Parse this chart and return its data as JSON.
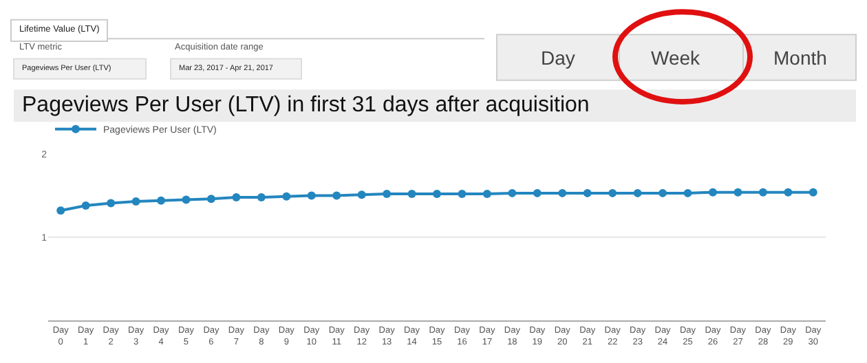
{
  "chart_data": {
    "type": "line",
    "title": "Pageviews Per User (LTV) in first 31 days after acquisition",
    "categories": [
      "Day 0",
      "Day 1",
      "Day 2",
      "Day 3",
      "Day 4",
      "Day 5",
      "Day 6",
      "Day 7",
      "Day 8",
      "Day 9",
      "Day 10",
      "Day 11",
      "Day 12",
      "Day 13",
      "Day 14",
      "Day 15",
      "Day 16",
      "Day 17",
      "Day 18",
      "Day 19",
      "Day 20",
      "Day 21",
      "Day 22",
      "Day 23",
      "Day 24",
      "Day 25",
      "Day 26",
      "Day 27",
      "Day 28",
      "Day 29",
      "Day 30"
    ],
    "series": [
      {
        "name": "Pageviews Per User (LTV)",
        "color": "#2386bf",
        "values": [
          1.32,
          1.38,
          1.41,
          1.43,
          1.44,
          1.45,
          1.46,
          1.48,
          1.48,
          1.49,
          1.5,
          1.5,
          1.51,
          1.52,
          1.52,
          1.52,
          1.52,
          1.52,
          1.53,
          1.53,
          1.53,
          1.53,
          1.53,
          1.53,
          1.53,
          1.53,
          1.54,
          1.54,
          1.54,
          1.54,
          1.54
        ]
      }
    ],
    "ylim": [
      0,
      2
    ],
    "yticks": [
      1,
      2
    ],
    "grid": "y",
    "legend": "top left",
    "marker": "circle",
    "line_style": "solid",
    "annotations": [
      "Lifetime Value (LTV)",
      "LTV metric",
      "Pageviews Per User (LTV)",
      "Acquisition date range",
      "Mar 23, 2017 - Apr 21, 2017",
      "Day",
      "Week",
      "Month"
    ]
  }
}
